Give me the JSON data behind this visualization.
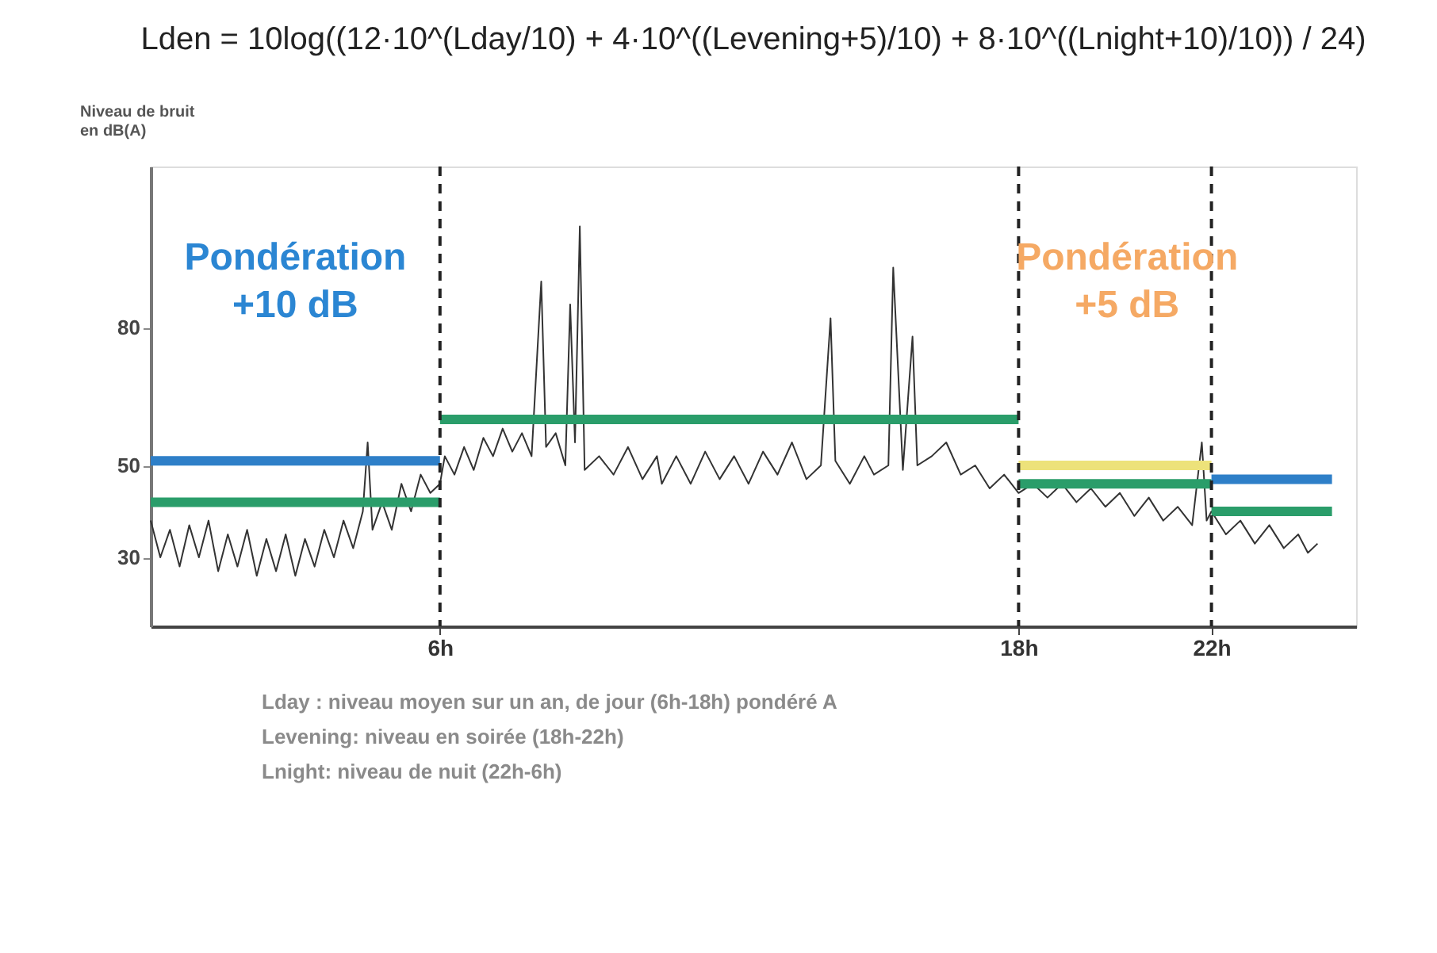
{
  "chart_data": {
    "type": "line",
    "title": "Lden = 10log((12·10^(Lday/10) + 4·10^((Levening+5)/10) + 8·10^((Lnight+10)/10)) / 24)",
    "ylabel": "Niveau de bruit en dB(A)",
    "xlim": [
      0,
      25
    ],
    "xticks": [
      {
        "value": 6,
        "label": "6h"
      },
      {
        "value": 18,
        "label": "18h"
      },
      {
        "value": 22,
        "label": "22h"
      }
    ],
    "ylim": [
      15,
      115
    ],
    "yticks": [
      30,
      50,
      80
    ],
    "grid": false,
    "marker": "none",
    "line_style": "solid",
    "series": [
      {
        "color": "#333333",
        "x": [
          0,
          0.2,
          0.4,
          0.6,
          0.8,
          1.0,
          1.2,
          1.4,
          1.6,
          1.8,
          2.0,
          2.2,
          2.4,
          2.6,
          2.8,
          3.0,
          3.2,
          3.4,
          3.6,
          3.8,
          4.0,
          4.2,
          4.4,
          4.5,
          4.6,
          4.8,
          5.0,
          5.2,
          5.4,
          5.6,
          5.8,
          6.0,
          6.1,
          6.3,
          6.5,
          6.7,
          6.9,
          7.1,
          7.3,
          7.5,
          7.7,
          7.9,
          8.1,
          8.2,
          8.4,
          8.6,
          8.7,
          8.8,
          8.9,
          9.0,
          9.3,
          9.6,
          9.9,
          10.2,
          10.5,
          10.6,
          10.9,
          11.2,
          11.5,
          11.8,
          12.1,
          12.4,
          12.7,
          13.0,
          13.3,
          13.6,
          13.9,
          14.1,
          14.2,
          14.5,
          14.8,
          15.0,
          15.3,
          15.4,
          15.6,
          15.8,
          15.9,
          16.2,
          16.5,
          16.8,
          17.1,
          17.4,
          17.7,
          18.0,
          18.3,
          18.6,
          18.9,
          19.2,
          19.5,
          19.8,
          20.1,
          20.4,
          20.7,
          21.0,
          21.3,
          21.6,
          21.8,
          21.9,
          22.0,
          22.3,
          22.6,
          22.9,
          23.2,
          23.5,
          23.8,
          24.0,
          24.2
        ],
        "values": [
          38,
          30,
          36,
          28,
          37,
          30,
          38,
          27,
          35,
          28,
          36,
          26,
          34,
          27,
          35,
          26,
          34,
          28,
          36,
          30,
          38,
          32,
          40,
          55,
          36,
          42,
          36,
          46,
          40,
          48,
          44,
          46,
          52,
          48,
          54,
          49,
          56,
          52,
          58,
          53,
          57,
          52,
          90,
          54,
          57,
          50,
          85,
          55,
          102,
          49,
          52,
          48,
          54,
          47,
          52,
          46,
          52,
          46,
          53,
          47,
          52,
          46,
          53,
          48,
          55,
          47,
          50,
          82,
          51,
          46,
          52,
          48,
          50,
          93,
          49,
          78,
          50,
          52,
          55,
          48,
          50,
          45,
          48,
          44,
          46,
          43,
          46,
          42,
          45,
          41,
          44,
          39,
          43,
          38,
          41,
          37,
          55,
          38,
          40,
          35,
          38,
          33,
          37,
          32,
          35,
          31,
          33
        ]
      },
      {
        "color": "#2e7fc8",
        "x": [
          0,
          6
        ],
        "values": [
          51,
          51
        ]
      },
      {
        "color": "#2a9d6a",
        "x": [
          0,
          6
        ],
        "values": [
          42,
          42
        ]
      },
      {
        "color": "#2a9d6a",
        "x": [
          6,
          18
        ],
        "values": [
          60,
          60
        ]
      },
      {
        "color": "#ede27a",
        "x": [
          18,
          22
        ],
        "values": [
          50,
          50
        ]
      },
      {
        "color": "#2a9d6a",
        "x": [
          18,
          22
        ],
        "values": [
          46,
          46
        ]
      },
      {
        "color": "#2e7fc8",
        "x": [
          22,
          24.5
        ],
        "values": [
          47,
          47
        ]
      },
      {
        "color": "#2a9d6a",
        "x": [
          22,
          24.5
        ],
        "values": [
          40,
          40
        ]
      }
    ],
    "ref_lines": [
      {
        "axis": "x",
        "value": 6,
        "line_style": "dashed",
        "color": "#222222"
      },
      {
        "axis": "x",
        "value": 18,
        "line_style": "dashed",
        "color": "#222222"
      },
      {
        "axis": "x",
        "value": 22,
        "line_style": "dashed",
        "color": "#222222"
      }
    ],
    "annotations": [
      "Pondération\n+10 dB",
      "Pondération\n+5 dB",
      "Lday : niveau moyen sur un an, de jour (6h-18h) pondéré A",
      "Levening: niveau en soirée (18h-22h)",
      "Lnight: niveau de nuit (22h-6h)"
    ]
  }
}
